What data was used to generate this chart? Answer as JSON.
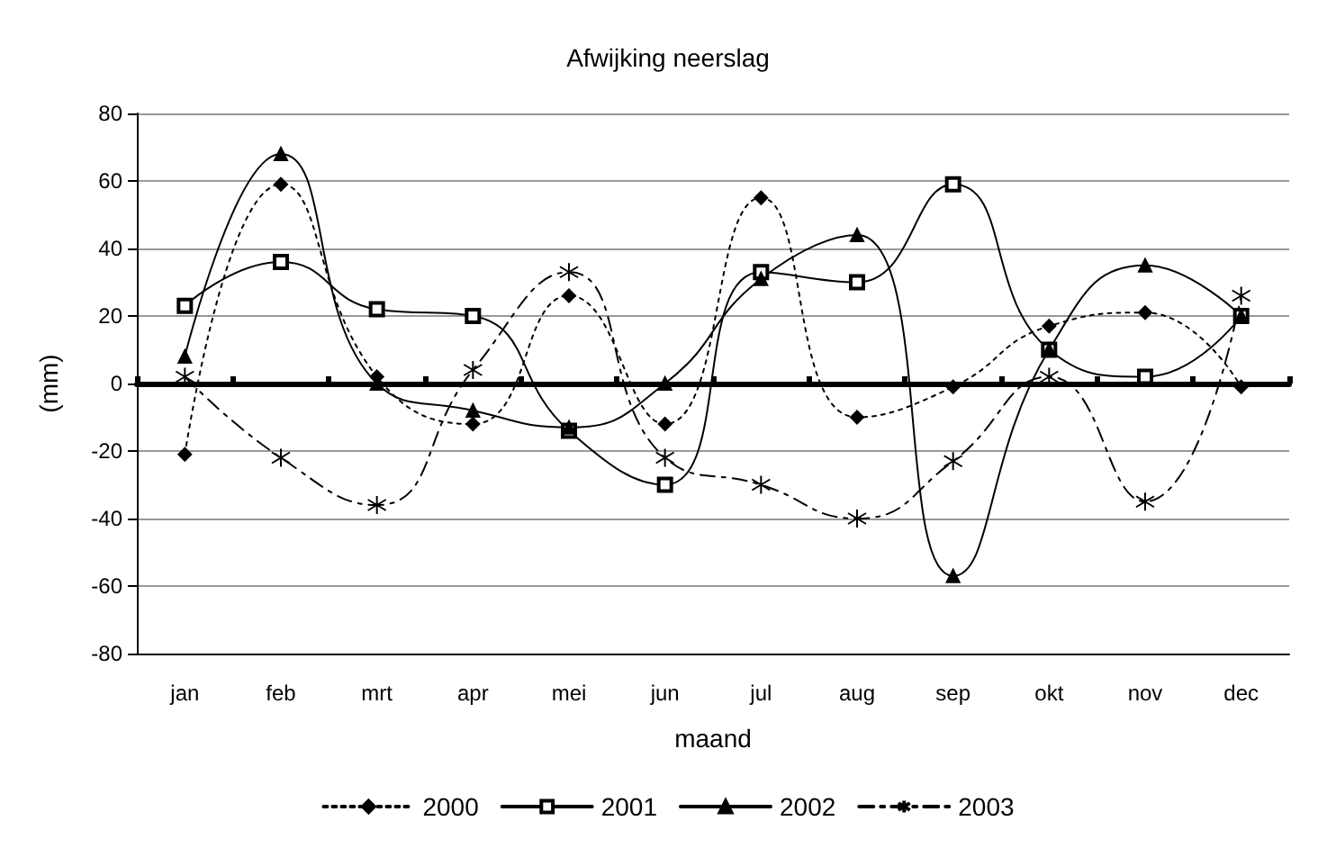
{
  "chart_data": {
    "type": "line",
    "title": "Afwijking neerslag",
    "xlabel": "maand",
    "ylabel": "(mm)",
    "categories": [
      "jan",
      "feb",
      "mrt",
      "apr",
      "mei",
      "jun",
      "jul",
      "aug",
      "sep",
      "okt",
      "nov",
      "dec"
    ],
    "series": [
      {
        "name": "2000",
        "color": "#000000",
        "marker": "diamond",
        "line_style": "dotted",
        "values": [
          -21,
          59,
          2,
          -12,
          26,
          -12,
          55,
          -10,
          -1,
          17,
          21,
          -1
        ]
      },
      {
        "name": "2001",
        "color": "#000000",
        "marker": "square",
        "line_style": "solid",
        "values": [
          23,
          36,
          22,
          20,
          -14,
          -30,
          33,
          30,
          59,
          10,
          2,
          20
        ]
      },
      {
        "name": "2002",
        "color": "#000000",
        "marker": "triangle",
        "line_style": "solid",
        "values": [
          8,
          68,
          0,
          -8,
          -13,
          0,
          31,
          44,
          -57,
          10,
          35,
          20
        ]
      },
      {
        "name": "2003",
        "color": "#000000",
        "marker": "cross",
        "line_style": "dashed",
        "values": [
          2,
          -22,
          -36,
          4,
          33,
          -22,
          -30,
          -40,
          -23,
          2,
          -35,
          26
        ]
      }
    ],
    "ylim": [
      -80,
      80
    ],
    "yticks": [
      -80,
      -60,
      -40,
      -20,
      0,
      20,
      40,
      60,
      80
    ],
    "grid": "y",
    "legend": "bottom"
  }
}
